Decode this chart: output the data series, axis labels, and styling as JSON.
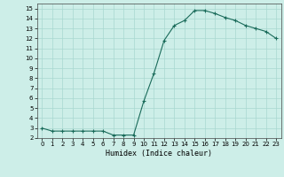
{
  "x": [
    0,
    1,
    2,
    3,
    4,
    5,
    6,
    7,
    8,
    9,
    10,
    11,
    12,
    13,
    14,
    15,
    16,
    17,
    18,
    19,
    20,
    21,
    22,
    23
  ],
  "y": [
    3.0,
    2.7,
    2.7,
    2.7,
    2.7,
    2.7,
    2.7,
    2.3,
    2.3,
    2.3,
    5.7,
    8.5,
    11.8,
    13.3,
    13.8,
    14.8,
    14.8,
    14.5,
    14.1,
    13.8,
    13.3,
    13.0,
    12.7,
    12.0
  ],
  "line_color": "#1a6b5a",
  "marker": "+",
  "marker_size": 3,
  "xlabel": "Humidex (Indice chaleur)",
  "xlim": [
    -0.5,
    23.5
  ],
  "ylim": [
    2,
    15.5
  ],
  "yticks": [
    2,
    3,
    4,
    5,
    6,
    7,
    8,
    9,
    10,
    11,
    12,
    13,
    14,
    15
  ],
  "xticks": [
    0,
    1,
    2,
    3,
    4,
    5,
    6,
    7,
    8,
    9,
    10,
    11,
    12,
    13,
    14,
    15,
    16,
    17,
    18,
    19,
    20,
    21,
    22,
    23
  ],
  "background_color": "#cdeee8",
  "grid_color": "#a8d8d0"
}
